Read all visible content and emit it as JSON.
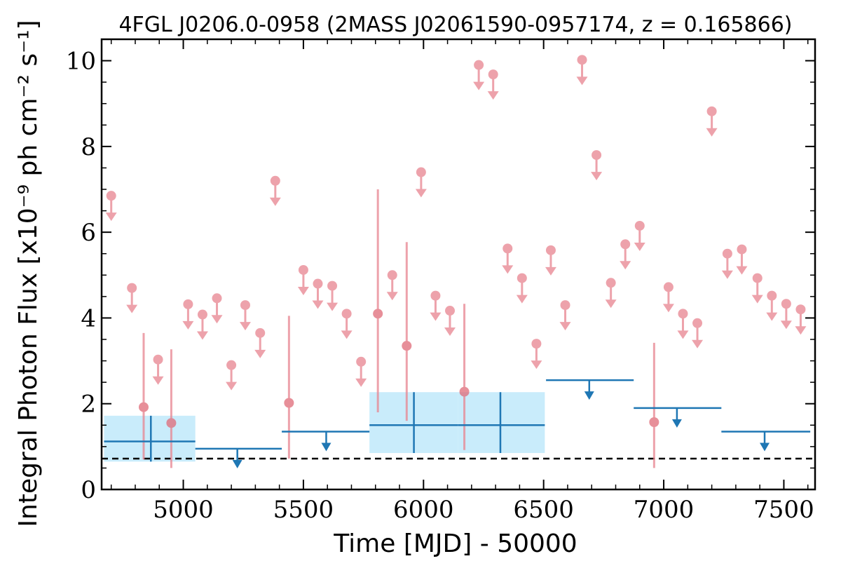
{
  "chart_data": {
    "type": "scatter",
    "title": "4FGL J0206.0-0958 (2MASS J02061590-0957174, z = 0.165866)",
    "xlabel": "Time [MJD] - 50000",
    "ylabel": "Integral Photon Flux [x10⁻⁹ ph cm⁻² s⁻¹]",
    "xlim": [
      4660,
      7630
    ],
    "ylim": [
      0,
      10.5
    ],
    "x_ticks": [
      5000,
      5500,
      6000,
      6500,
      7000,
      7500
    ],
    "x_tick_labels": [
      "5000",
      "5500",
      "6000",
      "6500",
      "7000",
      "7500"
    ],
    "y_ticks": [
      0,
      2,
      4,
      6,
      8,
      10
    ],
    "y_tick_labels": [
      "0",
      "2",
      "4",
      "6",
      "8",
      "10"
    ],
    "reference_line": 0.72,
    "colors": {
      "short_bin": "#e8848f",
      "long_bin": "#1f77b4",
      "band": "#c9ecfb",
      "reference": "#000000"
    },
    "short_bins": {
      "upper_limits": [
        {
          "x": 4700,
          "y": 6.85
        },
        {
          "x": 4786,
          "y": 4.7
        },
        {
          "x": 4895,
          "y": 3.03
        },
        {
          "x": 5020,
          "y": 4.32
        },
        {
          "x": 5080,
          "y": 4.08
        },
        {
          "x": 5140,
          "y": 4.46
        },
        {
          "x": 5200,
          "y": 2.9
        },
        {
          "x": 5258,
          "y": 4.3
        },
        {
          "x": 5320,
          "y": 3.65
        },
        {
          "x": 5383,
          "y": 7.2
        },
        {
          "x": 5500,
          "y": 5.12
        },
        {
          "x": 5560,
          "y": 4.8
        },
        {
          "x": 5620,
          "y": 4.75
        },
        {
          "x": 5680,
          "y": 4.1
        },
        {
          "x": 5740,
          "y": 2.98
        },
        {
          "x": 5870,
          "y": 5.0
        },
        {
          "x": 5990,
          "y": 7.4
        },
        {
          "x": 6050,
          "y": 4.52
        },
        {
          "x": 6110,
          "y": 4.17
        },
        {
          "x": 6230,
          "y": 9.9
        },
        {
          "x": 6290,
          "y": 9.68
        },
        {
          "x": 6350,
          "y": 5.62
        },
        {
          "x": 6410,
          "y": 4.93
        },
        {
          "x": 6470,
          "y": 3.4
        },
        {
          "x": 6530,
          "y": 5.58
        },
        {
          "x": 6590,
          "y": 4.3
        },
        {
          "x": 6660,
          "y": 10.02
        },
        {
          "x": 6720,
          "y": 7.8
        },
        {
          "x": 6780,
          "y": 4.82
        },
        {
          "x": 6840,
          "y": 5.72
        },
        {
          "x": 6900,
          "y": 6.15
        },
        {
          "x": 7020,
          "y": 4.72
        },
        {
          "x": 7080,
          "y": 4.1
        },
        {
          "x": 7140,
          "y": 3.88
        },
        {
          "x": 7200,
          "y": 8.82
        },
        {
          "x": 7265,
          "y": 5.5
        },
        {
          "x": 7325,
          "y": 5.6
        },
        {
          "x": 7390,
          "y": 4.93
        },
        {
          "x": 7450,
          "y": 4.52
        },
        {
          "x": 7510,
          "y": 4.33
        },
        {
          "x": 7570,
          "y": 4.2
        }
      ],
      "detections": [
        {
          "x": 4835,
          "y": 1.92,
          "lo": 0.7,
          "hi": 3.65
        },
        {
          "x": 4950,
          "y": 1.55,
          "lo": 0.5,
          "hi": 3.27
        },
        {
          "x": 5440,
          "y": 2.02,
          "lo": 0.72,
          "hi": 4.05
        },
        {
          "x": 5810,
          "y": 4.1,
          "lo": 1.8,
          "hi": 7.0
        },
        {
          "x": 5930,
          "y": 3.35,
          "lo": 1.6,
          "hi": 5.77
        },
        {
          "x": 6170,
          "y": 2.28,
          "lo": 0.92,
          "hi": 4.33
        },
        {
          "x": 6960,
          "y": 1.57,
          "lo": 0.5,
          "hi": 3.42
        }
      ]
    },
    "long_bins": {
      "detections": [
        {
          "x": 4865,
          "x0": 4670,
          "x1": 5050,
          "y": 1.12,
          "lo": 0.65,
          "hi": 1.72
        },
        {
          "x": 5960,
          "x0": 5775,
          "x1": 6143,
          "y": 1.5,
          "lo": 0.85,
          "hi": 2.27
        },
        {
          "x": 6320,
          "x0": 6143,
          "x1": 6505,
          "y": 1.5,
          "lo": 0.85,
          "hi": 2.27
        }
      ],
      "upper_limits": [
        {
          "x": 5225,
          "x0": 5050,
          "x1": 5410,
          "y": 0.95
        },
        {
          "x": 5595,
          "x0": 5410,
          "x1": 5775,
          "y": 1.35
        },
        {
          "x": 6690,
          "x0": 6510,
          "x1": 6875,
          "y": 2.55
        },
        {
          "x": 7055,
          "x0": 6875,
          "x1": 7240,
          "y": 1.9
        },
        {
          "x": 7420,
          "x0": 7240,
          "x1": 7610,
          "y": 1.35
        }
      ]
    }
  }
}
